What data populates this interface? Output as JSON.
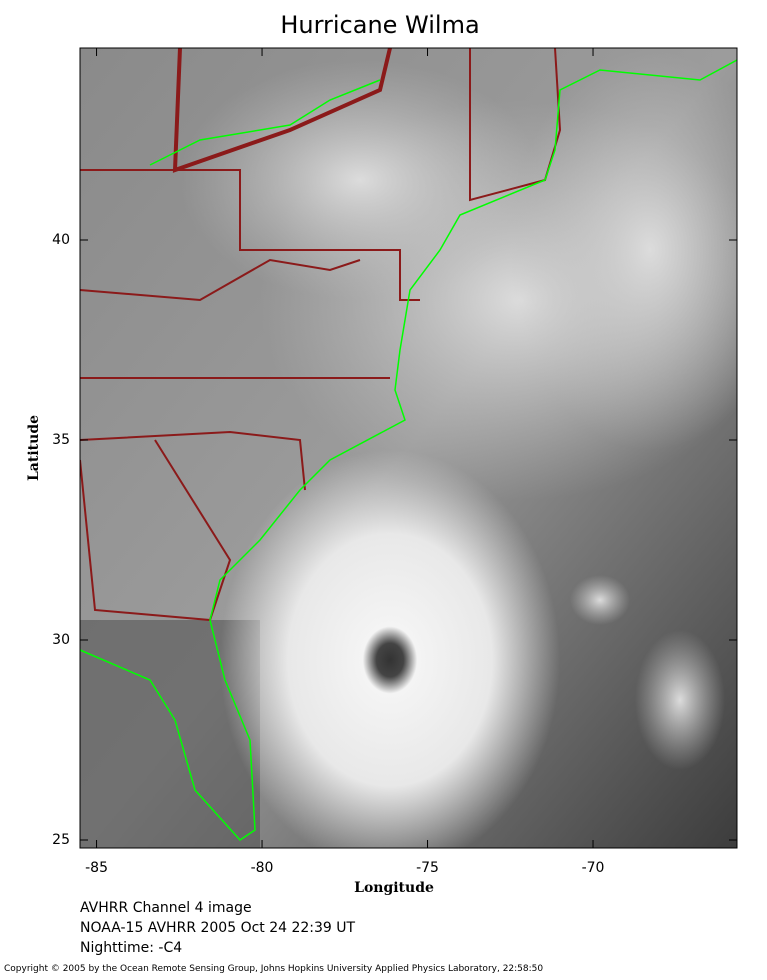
{
  "map": {
    "title": "Hurricane Wilma",
    "xlabel": "Longitude",
    "ylabel": "Latitude",
    "xlim": [
      -85.5,
      -65.65
    ],
    "ylim": [
      24.8,
      44.8
    ],
    "xticks": [
      -85,
      -80,
      -75,
      -70
    ],
    "yticks": [
      25,
      30,
      35,
      40
    ]
  },
  "caption": [
    "AVHRR Channel 4 image",
    "NOAA-15 AVHRR 2005 Oct 24 22:39 UT",
    "Nighttime: -C4"
  ],
  "copyright": "Copyright © 2005 by the Ocean Remote Sensing Group, Johns Hopkins University Applied Physics Laboratory, 22:58:50"
}
